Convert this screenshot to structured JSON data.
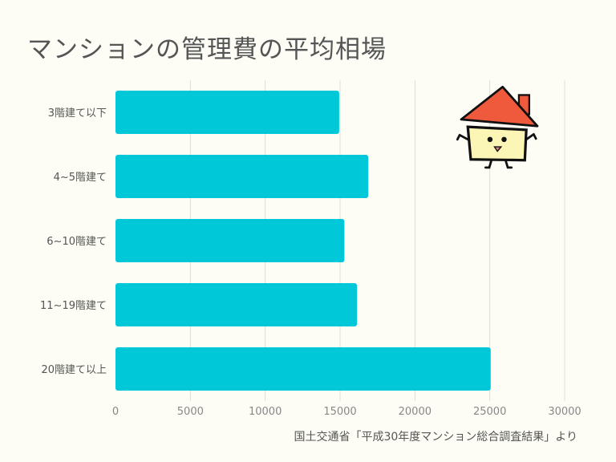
{
  "chart_data": {
    "type": "bar",
    "orientation": "horizontal",
    "title": "マンションの管理費の平均相場",
    "categories": [
      "3階建て以下",
      "4~5階建て",
      "6~10階建て",
      "11~19階建て",
      "20階建て以上"
    ],
    "values": [
      14940,
      16880,
      15290,
      16130,
      25060
    ],
    "xlim": [
      0,
      30000
    ],
    "xticks": [
      "0",
      "5000",
      "10000",
      "15000",
      "20000",
      "25000",
      "30000"
    ],
    "grid": true,
    "bar_color": "#00c8d9",
    "source": "国土交通省「平成30年度マンション総合調査結果」より"
  }
}
